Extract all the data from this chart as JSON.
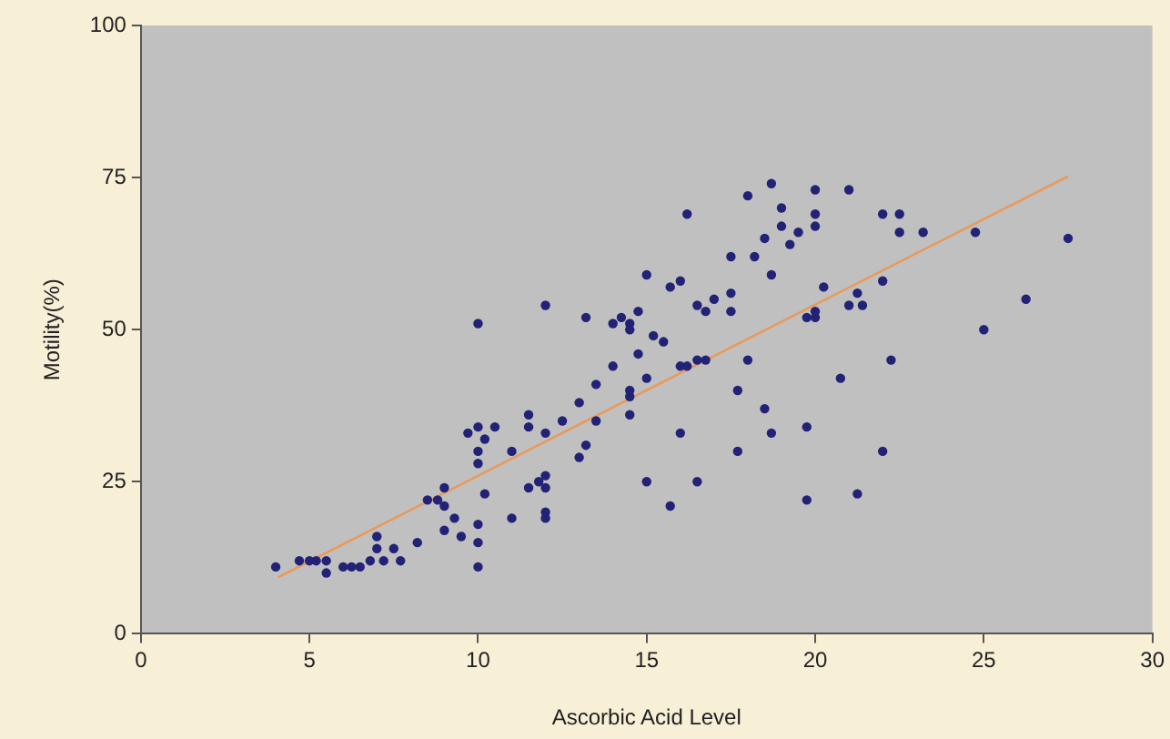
{
  "chart_data": {
    "type": "scatter",
    "xlabel": "Ascorbic Acid Level",
    "ylabel": "Motility(%)",
    "xlim": [
      0,
      30
    ],
    "xticks": [
      0,
      5,
      10,
      15,
      20,
      25,
      30
    ],
    "ylim": [
      0,
      100
    ],
    "yticks": [
      0,
      25,
      50,
      75,
      100
    ],
    "grid": false,
    "legend": false,
    "marker": "circle",
    "series": [
      {
        "color": "#222277",
        "x": [
          4.0,
          4.7,
          5.0,
          5.2,
          5.5,
          5.5,
          6.0,
          6.25,
          6.5,
          6.8,
          7.0,
          7.0,
          7.2,
          7.5,
          7.7,
          8.2,
          8.5,
          8.8,
          9.0,
          9.0,
          9.0,
          9.3,
          9.5,
          9.7,
          10,
          10,
          10,
          10,
          10,
          10,
          10,
          10.2,
          10.2,
          10.5,
          11,
          11,
          11.5,
          11.5,
          11.5,
          11.8,
          12,
          12,
          12,
          12,
          12,
          12,
          12.5,
          13,
          13,
          13.2,
          13.2,
          13.5,
          13.5,
          14,
          14,
          14.25,
          14.5,
          14.5,
          14.5,
          14.5,
          14.5,
          14.75,
          14.75,
          15,
          15,
          15,
          15.2,
          15.5,
          15.7,
          15.7,
          16,
          16,
          16,
          16.2,
          16.2,
          16.5,
          16.5,
          16.5,
          16.75,
          16.75,
          17,
          17.5,
          17.5,
          17.5,
          17.7,
          17.7,
          18,
          18,
          18.2,
          18.5,
          18.5,
          18.7,
          18.7,
          18.7,
          19,
          19,
          19.25,
          19.5,
          19.75,
          19.75,
          19.75,
          20,
          20,
          20,
          20,
          20,
          20.25,
          20.75,
          21,
          21,
          21.25,
          21.25,
          21.4,
          22,
          22,
          22,
          22.25,
          22.5,
          22.5,
          23.2,
          24.75,
          25,
          26.25,
          27.5
        ],
        "values": [
          11,
          12,
          12,
          12,
          12,
          10,
          11,
          11,
          11,
          12,
          16,
          14,
          12,
          14,
          12,
          15,
          22,
          22,
          24,
          21,
          17,
          19,
          16,
          33,
          51,
          34,
          30,
          28,
          18,
          15,
          11,
          32,
          23,
          34,
          30,
          19,
          36,
          34,
          24,
          25,
          54,
          33,
          26,
          24,
          20,
          19,
          35,
          38,
          29,
          52,
          31,
          41,
          35,
          51,
          44,
          52,
          51,
          50,
          40,
          39,
          36,
          53,
          46,
          59,
          42,
          25,
          49,
          48,
          57,
          21,
          58,
          44,
          33,
          69,
          44,
          54,
          45,
          25,
          53,
          45,
          55,
          62,
          56,
          53,
          40,
          30,
          72,
          45,
          62,
          65,
          37,
          74,
          59,
          33,
          70,
          67,
          64,
          66,
          52,
          34,
          22,
          73,
          69,
          67,
          53,
          52,
          57,
          42,
          73,
          54,
          56,
          23,
          54,
          69,
          58,
          30,
          45,
          69,
          66,
          66,
          66,
          50,
          55,
          65
        ]
      },
      {
        "type": "line",
        "color": "#e89a5c",
        "x": [
          4.07,
          27.5
        ],
        "values": [
          9.3,
          75.2
        ],
        "marker": "none"
      }
    ]
  }
}
